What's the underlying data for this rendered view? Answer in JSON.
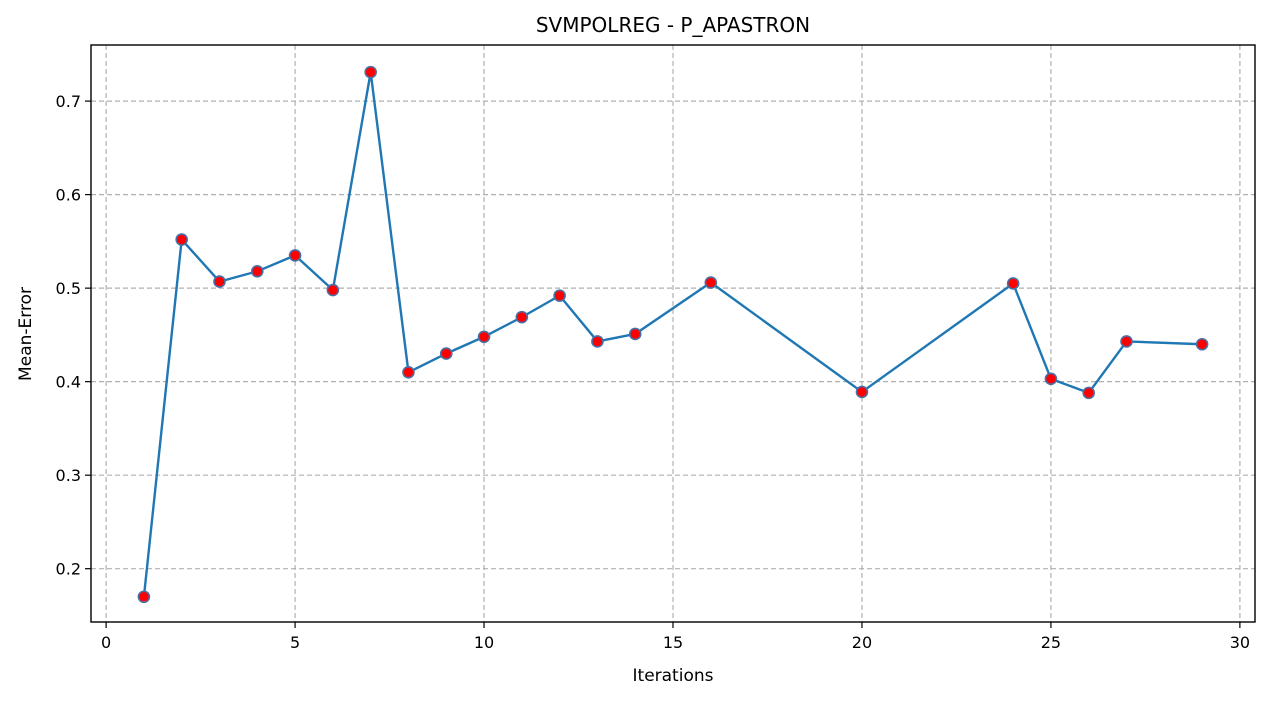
{
  "chart_data": {
    "type": "line",
    "title": "SVMPOLREG - P_APASTRON",
    "xlabel": "Iterations",
    "ylabel": "Mean-Error",
    "xlim": [
      -0.4,
      30.4
    ],
    "ylim": [
      0.143,
      0.76
    ],
    "xticks": [
      0,
      5,
      10,
      15,
      20,
      25,
      30
    ],
    "yticks": [
      0.2,
      0.3,
      0.4,
      0.5,
      0.6,
      0.7
    ],
    "grid": true,
    "line_color": "#1f77b4",
    "marker_color": "#ff0000",
    "marker_edge_color": "#4a6fa5",
    "x": [
      1,
      2,
      3,
      4,
      5,
      6,
      7,
      8,
      9,
      10,
      11,
      12,
      13,
      14,
      16,
      20,
      24,
      25,
      26,
      27,
      29
    ],
    "y": [
      0.17,
      0.552,
      0.507,
      0.518,
      0.535,
      0.498,
      0.731,
      0.41,
      0.43,
      0.448,
      0.469,
      0.492,
      0.443,
      0.451,
      0.506,
      0.389,
      0.505,
      0.403,
      0.388,
      0.443,
      0.44
    ]
  }
}
